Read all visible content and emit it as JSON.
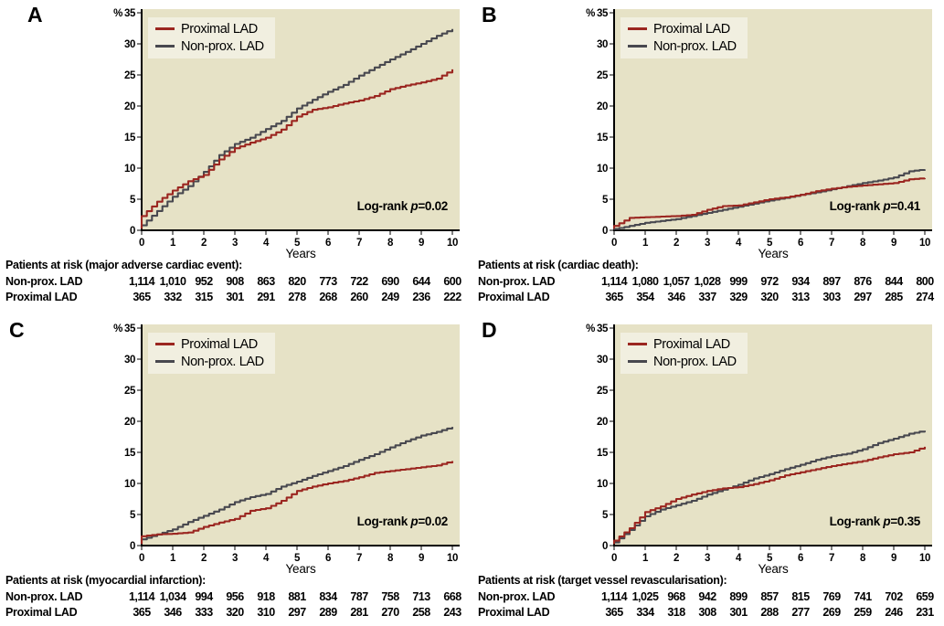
{
  "figure": {
    "y_axis_unit": "%",
    "x_axis_label": "Years",
    "y_ticks": [
      0,
      5,
      10,
      15,
      20,
      25,
      30,
      35
    ],
    "x_ticks": [
      0,
      1,
      2,
      3,
      4,
      5,
      6,
      7,
      8,
      9,
      10
    ],
    "legend": [
      {
        "label": "Proximal LAD",
        "color": "#9B2620"
      },
      {
        "label": "Non-prox. LAD",
        "color": "#48484F"
      }
    ],
    "colors": {
      "plot_bg": "#E6E2C6",
      "legend_bg": "#F1EFE0",
      "axis": "#000000",
      "proximal": "#9B2620",
      "nonprox": "#48484F"
    }
  },
  "chart_data": [
    {
      "panel": "A",
      "type": "line",
      "outcome": "major adverse cardiac event",
      "logrank": "Log-rank p=0.02",
      "xlabel": "Years",
      "ylabel": "%",
      "xlim": [
        0,
        10
      ],
      "ylim": [
        0,
        35
      ],
      "x": [
        0,
        0.5,
        1,
        1.5,
        2,
        2.5,
        3,
        3.5,
        4,
        4.5,
        5,
        5.5,
        6,
        6.5,
        7,
        7.5,
        8,
        8.5,
        9,
        9.5,
        10
      ],
      "series": [
        {
          "name": "Proximal LAD",
          "color": "#9B2620",
          "values": [
            2.3,
            4.6,
            6.4,
            7.9,
            8.9,
            11.4,
            13.2,
            14.1,
            14.9,
            16.2,
            18.3,
            19.4,
            19.8,
            20.4,
            20.9,
            21.6,
            22.7,
            23.3,
            23.8,
            24.4,
            25.9
          ]
        },
        {
          "name": "Non-prox. LAD",
          "color": "#48484F",
          "values": [
            0.8,
            3.1,
            5.4,
            7.1,
            9.4,
            12.1,
            13.9,
            14.9,
            16.3,
            17.6,
            19.6,
            21.0,
            22.3,
            23.4,
            24.9,
            26.2,
            27.5,
            28.7,
            30.0,
            31.3,
            32.4
          ]
        }
      ],
      "risk_table": {
        "title": "Patients at risk (major adverse cardiac event):",
        "years": [
          0,
          1,
          2,
          3,
          4,
          5,
          6,
          7,
          8,
          9,
          10
        ],
        "rows": [
          {
            "label": "Non-prox. LAD",
            "counts": [
              "1,114",
              "1,010",
              "952",
              "908",
              "863",
              "820",
              "773",
              "722",
              "690",
              "644",
              "600"
            ]
          },
          {
            "label": "Proximal LAD",
            "counts": [
              "365",
              "332",
              "315",
              "301",
              "291",
              "278",
              "268",
              "260",
              "249",
              "236",
              "222"
            ]
          }
        ]
      }
    },
    {
      "panel": "B",
      "type": "line",
      "outcome": "cardiac death",
      "logrank": "Log-rank p=0.41",
      "xlabel": "Years",
      "ylabel": "%",
      "xlim": [
        0,
        10
      ],
      "ylim": [
        0,
        35
      ],
      "x": [
        0,
        0.5,
        1,
        1.5,
        2,
        2.5,
        3,
        3.5,
        4,
        4.5,
        5,
        5.5,
        6,
        6.5,
        7,
        7.5,
        8,
        8.5,
        9,
        9.5,
        10
      ],
      "series": [
        {
          "name": "Proximal LAD",
          "color": "#9B2620",
          "values": [
            0.7,
            2.0,
            2.1,
            2.2,
            2.3,
            2.5,
            3.3,
            3.9,
            4.0,
            4.5,
            5.0,
            5.3,
            5.7,
            6.3,
            6.7,
            7.0,
            7.2,
            7.4,
            7.6,
            8.2,
            8.4
          ]
        },
        {
          "name": "Non-prox. LAD",
          "color": "#48484F",
          "values": [
            0.2,
            0.7,
            1.2,
            1.5,
            1.8,
            2.3,
            2.8,
            3.3,
            3.8,
            4.3,
            4.8,
            5.2,
            5.7,
            6.1,
            6.6,
            7.1,
            7.6,
            8.0,
            8.5,
            9.5,
            9.8
          ]
        }
      ],
      "risk_table": {
        "title": "Patients at risk (cardiac death):",
        "years": [
          0,
          1,
          2,
          3,
          4,
          5,
          6,
          7,
          8,
          9,
          10
        ],
        "rows": [
          {
            "label": "Non-prox. LAD",
            "counts": [
              "1,114",
              "1,080",
              "1,057",
              "1,028",
              "999",
              "972",
              "934",
              "897",
              "876",
              "844",
              "800"
            ]
          },
          {
            "label": "Proximal LAD",
            "counts": [
              "365",
              "354",
              "346",
              "337",
              "329",
              "320",
              "313",
              "303",
              "297",
              "285",
              "274"
            ]
          }
        ]
      }
    },
    {
      "panel": "C",
      "type": "line",
      "outcome": "myocardial infarction",
      "logrank": "Log-rank p=0.02",
      "xlabel": "Years",
      "ylabel": "%",
      "xlim": [
        0,
        10
      ],
      "ylim": [
        0,
        35
      ],
      "x": [
        0,
        0.5,
        1,
        1.5,
        2,
        2.5,
        3,
        3.5,
        4,
        4.5,
        5,
        5.5,
        6,
        6.5,
        7,
        7.5,
        8,
        8.5,
        9,
        9.5,
        10
      ],
      "series": [
        {
          "name": "Proximal LAD",
          "color": "#9B2620",
          "values": [
            1.5,
            1.8,
            1.9,
            2.1,
            3.0,
            3.7,
            4.3,
            5.6,
            6.0,
            7.2,
            8.8,
            9.5,
            10.0,
            10.4,
            11.0,
            11.7,
            12.0,
            12.3,
            12.6,
            12.9,
            13.6
          ]
        },
        {
          "name": "Non-prox. LAD",
          "color": "#48484F",
          "values": [
            1.0,
            1.8,
            2.6,
            3.8,
            4.8,
            5.8,
            7.0,
            7.8,
            8.3,
            9.5,
            10.3,
            11.2,
            12.0,
            12.8,
            13.8,
            14.7,
            15.8,
            16.8,
            17.7,
            18.3,
            19.1
          ]
        }
      ],
      "risk_table": {
        "title": "Patients at risk (myocardial infarction):",
        "years": [
          0,
          1,
          2,
          3,
          4,
          5,
          6,
          7,
          8,
          9,
          10
        ],
        "rows": [
          {
            "label": "Non-prox. LAD",
            "counts": [
              "1,114",
              "1,034",
              "994",
              "956",
              "918",
              "881",
              "834",
              "787",
              "758",
              "713",
              "668"
            ]
          },
          {
            "label": "Proximal LAD",
            "counts": [
              "365",
              "346",
              "333",
              "320",
              "310",
              "297",
              "289",
              "281",
              "270",
              "258",
              "243"
            ]
          }
        ]
      }
    },
    {
      "panel": "D",
      "type": "line",
      "outcome": "target vessel revascularisation",
      "logrank": "Log-rank p=0.35",
      "xlabel": "Years",
      "ylabel": "%",
      "xlim": [
        0,
        10
      ],
      "ylim": [
        0,
        35
      ],
      "x": [
        0,
        0.5,
        1,
        1.5,
        2,
        2.5,
        3,
        3.5,
        4,
        4.5,
        5,
        5.5,
        6,
        6.5,
        7,
        7.5,
        8,
        8.5,
        9,
        9.5,
        10
      ],
      "series": [
        {
          "name": "Proximal LAD",
          "color": "#9B2620",
          "values": [
            0.8,
            2.8,
            5.4,
            6.3,
            7.5,
            8.2,
            8.8,
            9.2,
            9.4,
            9.9,
            10.5,
            11.3,
            11.8,
            12.3,
            12.8,
            13.2,
            13.6,
            14.2,
            14.7,
            15.0,
            15.9
          ]
        },
        {
          "name": "Non-prox. LAD",
          "color": "#48484F",
          "values": [
            0.5,
            2.5,
            4.7,
            5.8,
            6.5,
            7.2,
            8.2,
            9.0,
            9.8,
            10.8,
            11.5,
            12.3,
            13.0,
            13.8,
            14.4,
            14.8,
            15.5,
            16.5,
            17.2,
            18.0,
            18.5
          ]
        }
      ],
      "risk_table": {
        "title": "Patients at risk (target vessel revascularisation):",
        "years": [
          0,
          1,
          2,
          3,
          4,
          5,
          6,
          7,
          8,
          9,
          10
        ],
        "rows": [
          {
            "label": "Non-prox. LAD",
            "counts": [
              "1,114",
              "1,025",
              "968",
              "942",
              "899",
              "857",
              "815",
              "769",
              "741",
              "702",
              "659"
            ]
          },
          {
            "label": "Proximal LAD",
            "counts": [
              "365",
              "334",
              "318",
              "308",
              "301",
              "288",
              "277",
              "269",
              "259",
              "246",
              "231"
            ]
          }
        ]
      }
    }
  ]
}
